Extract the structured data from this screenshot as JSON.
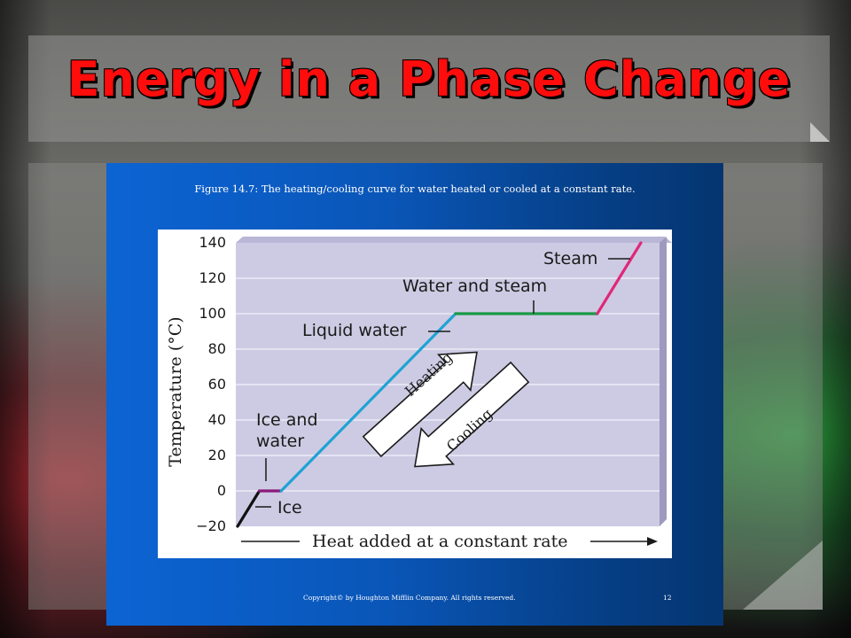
{
  "slide": {
    "title": "Energy in a Phase Change",
    "caption": "Figure 14.7:  The heating/cooling curve for water heated or cooled at a constant rate.",
    "copyright": "Copyright© by Houghton Mifflin Company.  All rights reserved.",
    "page_number": "12"
  },
  "chart_data": {
    "type": "line",
    "title": "",
    "xlabel": "Heat added at a constant rate",
    "ylabel": "Temperature (°C)",
    "ylim": [
      -20,
      140
    ],
    "yticks": [
      "140",
      "120",
      "100",
      "80",
      "60",
      "40",
      "20",
      "0",
      "−20"
    ],
    "grid": true,
    "x_unit_note": "relative heat added (no numeric axis)",
    "series": [
      {
        "segment": "Ice",
        "color": "#111111",
        "x": [
          0,
          1.0
        ],
        "y": [
          -20,
          0
        ]
      },
      {
        "segment": "Ice and water",
        "color": "#8b1a7a",
        "x": [
          1.0,
          2.0
        ],
        "y": [
          0,
          0
        ]
      },
      {
        "segment": "Liquid water",
        "color": "#1ea3d4",
        "x": [
          2.0,
          10.0
        ],
        "y": [
          0,
          100
        ]
      },
      {
        "segment": "Water and steam",
        "color": "#1a9a46",
        "x": [
          10.0,
          16.5
        ],
        "y": [
          100,
          100
        ]
      },
      {
        "segment": "Steam",
        "color": "#e0287a",
        "x": [
          16.5,
          18.5
        ],
        "y": [
          100,
          140
        ]
      }
    ],
    "annotations": {
      "steam": "Steam",
      "water_and_steam": "Water and steam",
      "liquid_water": "Liquid water",
      "ice_and_water_line1": "Ice and",
      "ice_and_water_line2": "water",
      "ice": "Ice",
      "heating": "Heating",
      "cooling": "Cooling"
    }
  },
  "colors": {
    "title": "#ff0d0d",
    "slide_blue": "#0a56b8",
    "plot_bg": "#cdcbe3",
    "plot_side": "#9d9abf"
  }
}
